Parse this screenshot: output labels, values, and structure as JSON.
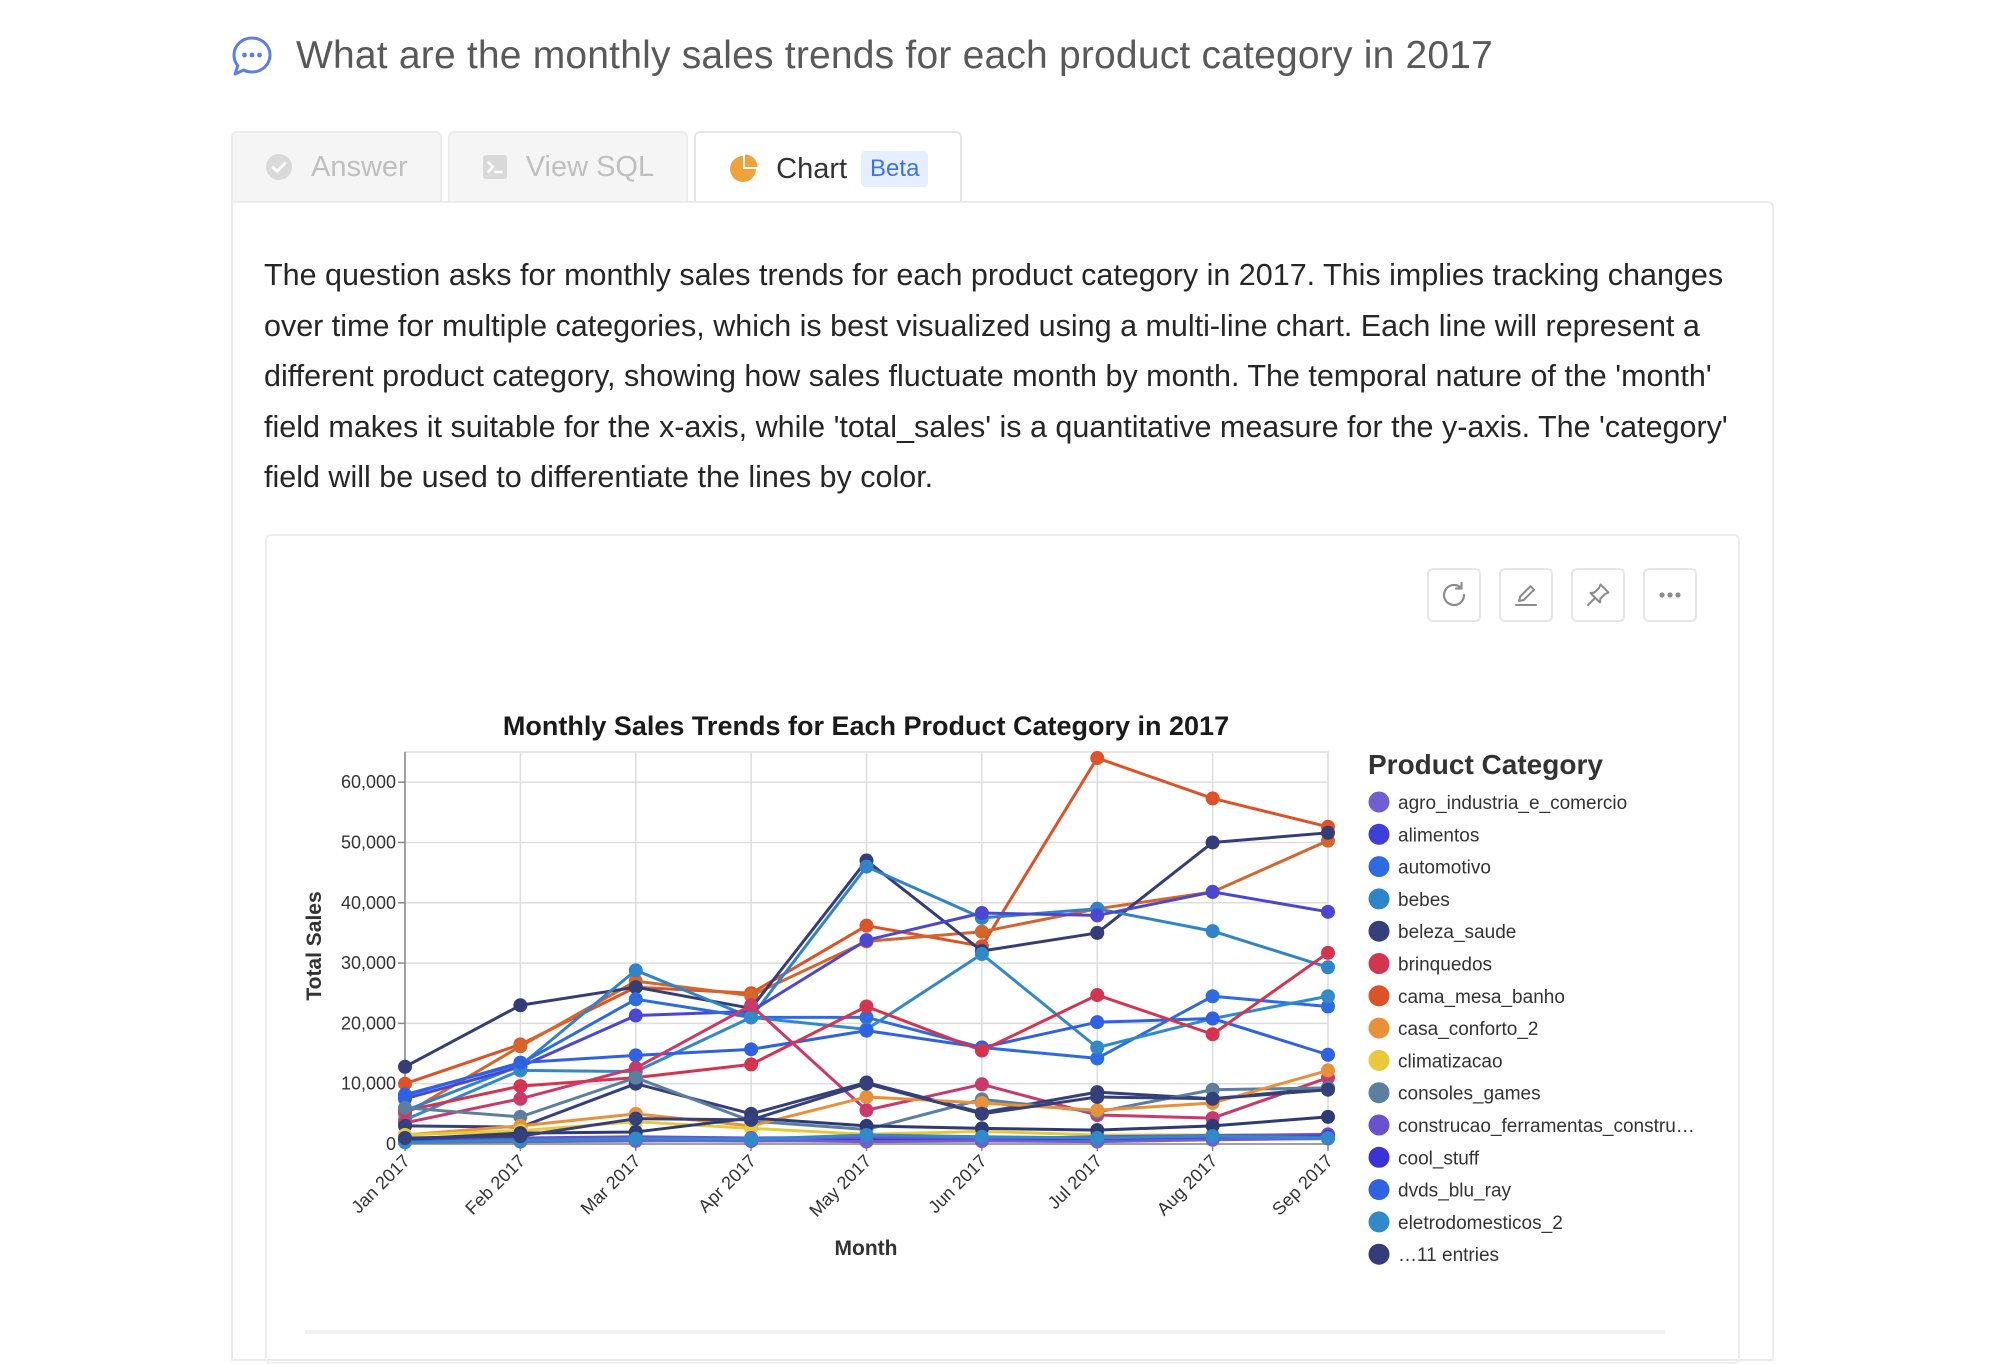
{
  "question": {
    "icon": "chat-bubble-icon",
    "text": "What are the monthly sales trends for each product category in 2017"
  },
  "tabs": [
    {
      "label": "Answer",
      "icon": "check-circle-icon",
      "active": false
    },
    {
      "label": "View SQL",
      "icon": "terminal-icon",
      "active": false
    },
    {
      "label": "Chart",
      "icon": "pie-chart-icon",
      "active": true,
      "badge": "Beta"
    }
  ],
  "description": "The question asks for monthly sales trends for each product category in 2017. This implies tracking changes over time for multiple categories, which is best visualized using a multi-line chart. Each line will represent a different product category, showing how sales fluctuate month by month. The temporal nature of the 'month' field makes it suitable for the x-axis, while 'total_sales' is a quantitative measure for the y-axis. The 'category' field will be used to differentiate the lines by color.",
  "toolbar": [
    {
      "name": "refresh-button",
      "icon": "refresh-icon"
    },
    {
      "name": "edit-button",
      "icon": "pencil-icon"
    },
    {
      "name": "pin-button",
      "icon": "pin-icon"
    },
    {
      "name": "more-button",
      "icon": "more-horizontal-icon"
    }
  ],
  "colors": {
    "accent": "#3f74e0",
    "chart_tab_icon": "#f0a23c"
  },
  "chart_data": {
    "type": "line",
    "title": "Monthly Sales Trends for Each Product Category in 2017",
    "xlabel": "Month",
    "ylabel": "Total Sales",
    "ylim": [
      0,
      65000
    ],
    "yticks": [
      "0",
      "10,000",
      "20,000",
      "30,000",
      "40,000",
      "50,000",
      "60,000"
    ],
    "ytick_values": [
      0,
      10000,
      20000,
      30000,
      40000,
      50000,
      60000
    ],
    "categories": [
      "Jan 2017",
      "Feb 2017",
      "Mar 2017",
      "Apr 2017",
      "May 2017",
      "Jun 2017",
      "Jul 2017",
      "Aug 2017",
      "Sep 2017"
    ],
    "grid": true,
    "legend": {
      "title": "Product Category",
      "placement": "right",
      "entries": [
        {
          "name": "agro_industria_e_comercio",
          "color": "#6f5fd0"
        },
        {
          "name": "alimentos",
          "color": "#3d3fd6"
        },
        {
          "name": "automotivo",
          "color": "#2f6be0"
        },
        {
          "name": "bebes",
          "color": "#2e84c8"
        },
        {
          "name": "beleza_saude",
          "color": "#35407a"
        },
        {
          "name": "brinquedos",
          "color": "#d5344f"
        },
        {
          "name": "cama_mesa_banho",
          "color": "#dd5327"
        },
        {
          "name": "casa_conforto_2",
          "color": "#e8913a"
        },
        {
          "name": "climatizacao",
          "color": "#e7c93a"
        },
        {
          "name": "consoles_games",
          "color": "#5a7fa0"
        },
        {
          "name": "construcao_ferramentas_constru…",
          "color": "#6a52cc"
        },
        {
          "name": "cool_stuff",
          "color": "#3a32d8"
        },
        {
          "name": "dvds_blu_ray",
          "color": "#2f62e3"
        },
        {
          "name": "eletrodomesticos_2",
          "color": "#3289c9"
        },
        {
          "name": "…11 entries",
          "color": "#353d78"
        }
      ]
    },
    "series": [
      {
        "color": "#dd5327",
        "values": [
          10000,
          16500,
          26000,
          25000,
          36200,
          32800,
          64000,
          57300,
          52600
        ]
      },
      {
        "color": "#d5652a",
        "values": [
          5000,
          16200,
          27000,
          24600,
          33600,
          35200,
          39000,
          41800,
          50300
        ]
      },
      {
        "color": "#353d78",
        "values": [
          12800,
          23000,
          26000,
          22500,
          47000,
          32000,
          35000,
          50000,
          51600
        ]
      },
      {
        "color": "#2e84c8",
        "values": [
          5500,
          13000,
          28800,
          21000,
          46000,
          37500,
          39000,
          35300,
          29300
        ]
      },
      {
        "color": "#4b47d2",
        "values": [
          7500,
          12800,
          21300,
          22000,
          33800,
          38300,
          37900,
          41800,
          38500
        ]
      },
      {
        "color": "#2f6be0",
        "values": [
          8200,
          13300,
          24000,
          21000,
          21000,
          16000,
          14200,
          24500,
          22800
        ]
      },
      {
        "color": "#3289c9",
        "values": [
          4000,
          12200,
          12000,
          21000,
          19000,
          31500,
          16000,
          20800,
          24500
        ]
      },
      {
        "color": "#2f62e3",
        "values": [
          8000,
          13500,
          14700,
          15700,
          18800,
          16000,
          20200,
          20800,
          14800
        ]
      },
      {
        "color": "#d5344f",
        "values": [
          5500,
          9600,
          11000,
          13200,
          22800,
          15500,
          24700,
          18200,
          31700
        ]
      },
      {
        "color": "#c93a6a",
        "values": [
          3500,
          7500,
          12600,
          23000,
          5600,
          9900,
          4800,
          4300,
          11000
        ]
      },
      {
        "color": "#35407a",
        "values": [
          3000,
          2800,
          10000,
          5000,
          10200,
          5200,
          8600,
          7500,
          9300
        ]
      },
      {
        "color": "#5a7fa0",
        "values": [
          6000,
          4500,
          11000,
          3800,
          2400,
          7400,
          5300,
          9000,
          9300
        ]
      },
      {
        "color": "#e8913a",
        "values": [
          1500,
          3000,
          5000,
          3000,
          7800,
          6800,
          5600,
          6800,
          12200
        ]
      },
      {
        "color": "#e7c93a",
        "values": [
          1500,
          2200,
          3700,
          2600,
          1600,
          2100,
          1500,
          1500,
          1500
        ]
      },
      {
        "color": "#6a52cc",
        "values": [
          700,
          1000,
          1200,
          1000,
          1100,
          800,
          1200,
          1400,
          1600
        ]
      },
      {
        "color": "#3a32d8",
        "values": [
          500,
          500,
          600,
          500,
          600,
          500,
          700,
          900,
          1200
        ]
      },
      {
        "color": "#6f5fd0",
        "values": [
          300,
          400,
          500,
          600,
          400,
          500,
          400,
          700,
          900
        ]
      },
      {
        "color": "#2d3a73",
        "values": [
          800,
          1800,
          2000,
          4300,
          3000,
          2600,
          2300,
          3000,
          4500
        ]
      },
      {
        "color": "#3289c9",
        "values": [
          300,
          600,
          900,
          800,
          1500,
          1200,
          1000,
          1300,
          1000
        ]
      },
      {
        "color": "#35407a",
        "values": [
          1000,
          1300,
          4200,
          4000,
          10000,
          5000,
          7800,
          7500,
          9000
        ]
      }
    ]
  }
}
